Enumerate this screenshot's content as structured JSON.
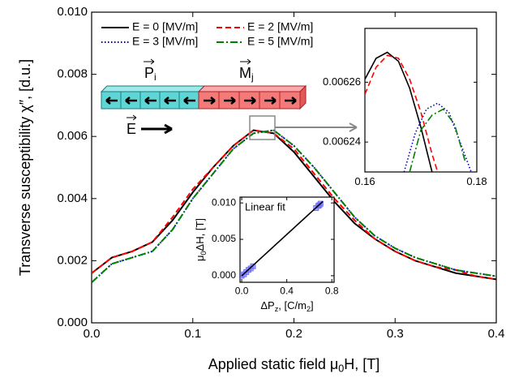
{
  "chart_data": [
    {
      "type": "line",
      "xlabel": [
        "Applied static field μ",
        "0",
        "H, [T]"
      ],
      "ylabel": "Transverse susceptibility χ″, [d.u.]",
      "x": [
        0,
        0.02,
        0.04,
        0.06,
        0.08,
        0.1,
        0.12,
        0.14,
        0.16,
        0.18,
        0.2,
        0.22,
        0.24,
        0.26,
        0.28,
        0.3,
        0.32,
        0.34,
        0.36,
        0.38,
        0.4
      ],
      "xlim": [
        0,
        0.4
      ],
      "xticks": [
        {
          "value": 0,
          "label": "0.0"
        },
        0.1,
        0.2,
        0.3,
        0.4
      ],
      "ylim": [
        0,
        0.01
      ],
      "yticks": [
        {
          "value": 0,
          "label": "0.000"
        },
        0.002,
        0.004,
        0.006,
        0.008,
        {
          "value": 0.01,
          "label": "0.010"
        }
      ],
      "legend": "upper left",
      "series": [
        {
          "name": "E = 0 [MV/m]",
          "color": "#000000",
          "dash": "solid",
          "values": [
            0.0016,
            0.0021,
            0.0023,
            0.0026,
            0.0033,
            0.0042,
            0.005,
            0.0057,
            0.0062,
            0.0061,
            0.0055,
            0.0047,
            0.0039,
            0.0032,
            0.0027,
            0.0023,
            0.002,
            0.0018,
            0.0016,
            0.0015,
            0.0014
          ]
        },
        {
          "name": "E = 2 [MV/m]",
          "color": "#ff0000",
          "dash": "dashed",
          "values": [
            0.0016,
            0.0021,
            0.0023,
            0.0026,
            0.0034,
            0.0043,
            0.005,
            0.0057,
            0.0062,
            0.0061,
            0.0056,
            0.0048,
            0.004,
            0.0033,
            0.0027,
            0.0023,
            0.002,
            0.0018,
            0.0017,
            0.0015,
            0.0014
          ]
        },
        {
          "name": "E = 3 [MV/m]",
          "color": "#0000cc",
          "dash": "dotted",
          "values": [
            0.0013,
            0.0019,
            0.0021,
            0.0023,
            0.003,
            0.004,
            0.0048,
            0.0056,
            0.0061,
            0.0062,
            0.0057,
            0.005,
            0.0042,
            0.0034,
            0.0028,
            0.0024,
            0.0021,
            0.0019,
            0.0017,
            0.0016,
            0.0015
          ]
        },
        {
          "name": "E = 5 [MV/m]",
          "color": "#008000",
          "dash": "dashdot",
          "values": [
            0.0013,
            0.0019,
            0.0021,
            0.0023,
            0.003,
            0.004,
            0.0048,
            0.0056,
            0.0061,
            0.0062,
            0.0057,
            0.005,
            0.0042,
            0.0034,
            0.0028,
            0.0024,
            0.0021,
            0.0019,
            0.0017,
            0.0016,
            0.0015
          ]
        }
      ]
    },
    {
      "type": "line",
      "xlim": [
        0.16,
        0.18
      ],
      "xticks": [
        0.16,
        0.18
      ],
      "ylim": [
        0.00623,
        0.006278
      ],
      "yticks": [
        0.00624,
        0.00626
      ],
      "series": [
        {
          "color": "#000000",
          "dash": "solid",
          "x": [
            0.16,
            0.162,
            0.164,
            0.166,
            0.168,
            0.17,
            0.172
          ],
          "values": [
            0.006261,
            0.006268,
            0.00627,
            0.006267,
            0.006258,
            0.006245,
            0.00623
          ]
        },
        {
          "color": "#ff0000",
          "dash": "dashed",
          "x": [
            0.16,
            0.162,
            0.164,
            0.166,
            0.168,
            0.17,
            0.172,
            0.173
          ],
          "values": [
            0.006256,
            0.006265,
            0.006269,
            0.006268,
            0.006261,
            0.00625,
            0.006236,
            0.00623
          ]
        },
        {
          "color": "#0000cc",
          "dash": "dotted",
          "x": [
            0.167,
            0.169,
            0.171,
            0.173,
            0.175,
            0.177,
            0.179
          ],
          "values": [
            0.00623,
            0.006243,
            0.006251,
            0.006253,
            0.00625,
            0.00624,
            0.00623
          ]
        },
        {
          "color": "#008000",
          "dash": "dashdot",
          "x": [
            0.168,
            0.17,
            0.172,
            0.174,
            0.176,
            0.178
          ],
          "values": [
            0.00623,
            0.006244,
            0.006249,
            0.006251,
            0.006246,
            0.006233
          ]
        }
      ]
    },
    {
      "type": "scatter",
      "xlabel": [
        "ΔP",
        "z",
        ", [C/m",
        "2",
        "]"
      ],
      "ylabel": [
        "μ",
        "0",
        "ΔH, [T]"
      ],
      "xlim": [
        -0.015,
        0.82
      ],
      "xticks": [
        {
          "value": 0,
          "label": "0.0"
        },
        0.4,
        0.8
      ],
      "ylim": [
        -0.0009,
        0.0108
      ],
      "yticks": [
        {
          "value": 0,
          "label": "0.000"
        },
        0.005,
        {
          "value": 0.01,
          "label": "0.010"
        }
      ],
      "series": [
        {
          "style": "markers",
          "color": "#6f6fff",
          "x": [
            0,
            0.02,
            0.04,
            0.06,
            0.08,
            0.1,
            0.66,
            0.68,
            0.69,
            0.7
          ],
          "values": [
            0,
            0.0002,
            0.0005,
            0.0008,
            0.001,
            0.0013,
            0.0093,
            0.0096,
            0.0097,
            0.0099
          ]
        },
        {
          "style": "line",
          "name": "Linear fit",
          "color": "#000000",
          "x": [
            0,
            0.72
          ],
          "values": [
            0,
            0.0102
          ]
        }
      ]
    }
  ],
  "schematic": {
    "polarization": [
      "P",
      "i"
    ],
    "magnetization": [
      "M",
      "j"
    ],
    "field": "E"
  }
}
